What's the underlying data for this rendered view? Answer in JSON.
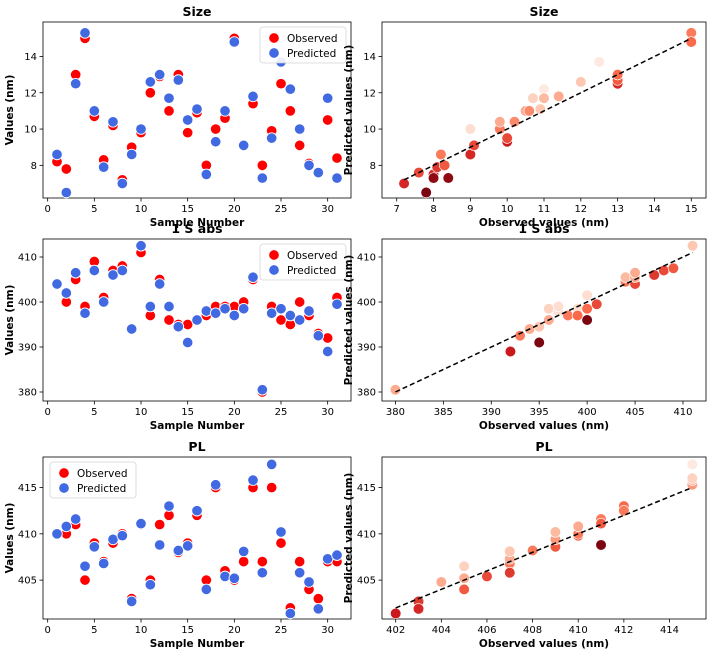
{
  "chart_data": [
    {
      "type": "scatter",
      "title": "Size",
      "xlabel": "Sample Number",
      "ylabel": "Values (nm)",
      "xlim": [
        -0.5,
        32.5
      ],
      "ylim": [
        6.2,
        15.9
      ],
      "xticks": [
        0,
        5,
        10,
        15,
        20,
        25,
        30
      ],
      "yticks": [
        8,
        10,
        12,
        14
      ],
      "legend": "top-right",
      "series": [
        {
          "name": "Observed",
          "color": "#ff0000",
          "x": [
            1,
            2,
            3,
            4,
            5,
            6,
            7,
            8,
            9,
            10,
            11,
            12,
            13,
            14,
            15,
            16,
            17,
            18,
            19,
            20,
            21,
            22,
            23,
            24,
            25,
            26,
            27,
            28,
            29,
            30,
            31
          ],
          "y": [
            8.2,
            7.8,
            13.0,
            15.0,
            10.7,
            8.3,
            10.2,
            7.2,
            9.0,
            9.8,
            12.0,
            12.9,
            11.0,
            13.0,
            9.8,
            10.9,
            8.0,
            10.0,
            10.6,
            15.0,
            9.1,
            11.4,
            8.0,
            9.9,
            12.5,
            11.0,
            9.1,
            8.1,
            7.6,
            10.5,
            8.4
          ]
        },
        {
          "name": "Predicted",
          "color": "#4169e1",
          "x": [
            1,
            2,
            3,
            4,
            5,
            6,
            7,
            8,
            9,
            10,
            11,
            12,
            13,
            14,
            15,
            16,
            17,
            18,
            19,
            20,
            21,
            22,
            23,
            24,
            25,
            26,
            27,
            28,
            29,
            30,
            31
          ],
          "y": [
            8.6,
            6.5,
            12.5,
            15.3,
            11.0,
            7.9,
            10.4,
            7.0,
            8.6,
            10.0,
            12.6,
            13.0,
            11.7,
            12.7,
            10.5,
            11.1,
            7.5,
            9.3,
            11.0,
            14.8,
            9.1,
            11.8,
            7.3,
            9.5,
            13.7,
            12.2,
            10.0,
            8.0,
            7.6,
            11.7,
            7.3
          ]
        }
      ]
    },
    {
      "type": "scatter",
      "title": "Size",
      "xlabel": "Observed values (nm)",
      "ylabel": "Predicted values (nm)",
      "xlim": [
        6.6,
        15.4
      ],
      "ylim": [
        6.2,
        15.9
      ],
      "xticks": [
        7,
        8,
        9,
        10,
        11,
        12,
        13,
        14,
        15
      ],
      "yticks": [
        8,
        10,
        12,
        14
      ],
      "colormap": "Reds",
      "reference_line": [
        [
          7.2,
          7.2
        ],
        [
          15.0,
          15.0
        ]
      ],
      "points": {
        "x": [
          7.2,
          7.6,
          7.8,
          8.0,
          8.0,
          8.1,
          8.2,
          8.3,
          8.4,
          9.0,
          9.0,
          9.1,
          9.8,
          9.8,
          10.0,
          10.0,
          10.2,
          10.5,
          10.6,
          10.7,
          10.9,
          11.0,
          11.0,
          11.4,
          12.0,
          12.5,
          13.0,
          13.0,
          13.0,
          15.0,
          15.0
        ],
        "y": [
          7.0,
          7.6,
          6.5,
          7.5,
          7.3,
          7.9,
          8.6,
          8.0,
          7.3,
          8.6,
          10.0,
          9.1,
          10.0,
          10.4,
          9.3,
          9.5,
          10.4,
          11.0,
          11.0,
          11.7,
          11.1,
          12.2,
          11.7,
          11.8,
          12.6,
          13.7,
          12.5,
          12.7,
          13.0,
          15.3,
          14.8
        ],
        "shade": [
          0.7,
          0.6,
          0.95,
          0.7,
          0.9,
          0.65,
          0.45,
          0.55,
          0.9,
          0.7,
          0.1,
          0.6,
          0.45,
          0.3,
          0.75,
          0.6,
          0.4,
          0.3,
          0.4,
          0.15,
          0.2,
          0.05,
          0.25,
          0.3,
          0.2,
          0.05,
          0.7,
          0.55,
          0.5,
          0.45,
          0.5
        ]
      }
    },
    {
      "type": "scatter",
      "title": "1 S abs",
      "xlabel": "Sample Number",
      "ylabel": "Values (nm)",
      "xlim": [
        -0.5,
        32.5
      ],
      "ylim": [
        378,
        414
      ],
      "xticks": [
        0,
        5,
        10,
        15,
        20,
        25,
        30
      ],
      "yticks": [
        380,
        390,
        400,
        410
      ],
      "legend": "top-right",
      "series": [
        {
          "name": "Observed",
          "color": "#ff0000",
          "x": [
            1,
            2,
            3,
            4,
            5,
            6,
            7,
            8,
            9,
            10,
            11,
            12,
            13,
            14,
            15,
            16,
            17,
            18,
            19,
            20,
            21,
            22,
            23,
            24,
            25,
            26,
            27,
            28,
            29,
            30,
            31
          ],
          "y": [
            404,
            400,
            405,
            399,
            409,
            401,
            407,
            408,
            394,
            411,
            397,
            405,
            396,
            395,
            395,
            396,
            397,
            399,
            399,
            399,
            400,
            405,
            380,
            399,
            396,
            395,
            400,
            397,
            393,
            392,
            401
          ]
        },
        {
          "name": "Predicted",
          "color": "#4169e1",
          "x": [
            1,
            2,
            3,
            4,
            5,
            6,
            7,
            8,
            9,
            10,
            11,
            12,
            13,
            14,
            15,
            16,
            17,
            18,
            19,
            20,
            21,
            22,
            23,
            24,
            25,
            26,
            27,
            28,
            29,
            30,
            31
          ],
          "y": [
            404,
            402,
            406.5,
            397.5,
            407,
            400,
            406,
            407,
            394,
            412.5,
            399,
            404,
            399,
            394.5,
            391,
            396,
            398,
            397.5,
            398.5,
            397,
            398.5,
            405.5,
            380.5,
            397.5,
            398.5,
            397,
            396,
            398,
            392.5,
            389,
            399.5
          ]
        }
      ]
    },
    {
      "type": "scatter",
      "title": "1 S abs",
      "xlabel": "Observed values (nm)",
      "ylabel": "Predicted values (nm)",
      "xlim": [
        378.6,
        412.4
      ],
      "ylim": [
        378,
        414
      ],
      "xticks": [
        380,
        385,
        390,
        395,
        400,
        405,
        410
      ],
      "yticks": [
        380,
        390,
        400,
        410
      ],
      "colormap": "Reds",
      "reference_line": [
        [
          380,
          380
        ],
        [
          411,
          411
        ]
      ],
      "points": {
        "x": [
          380,
          392,
          393,
          394,
          395,
          395,
          396,
          396,
          397,
          397,
          398,
          399,
          399,
          399,
          399,
          400,
          400,
          400,
          401,
          404,
          404,
          405,
          405,
          405,
          405,
          407,
          408,
          409,
          411
        ],
        "y": [
          380.5,
          389,
          392.5,
          394,
          394.5,
          391,
          396,
          398.5,
          398,
          399,
          397,
          398,
          397.5,
          398.5,
          397,
          396,
          401.5,
          398.5,
          399.5,
          404.5,
          405.5,
          404,
          406.5,
          405.5,
          406.5,
          406,
          407,
          407.5,
          412.5
        ],
        "shade": [
          0.3,
          0.75,
          0.45,
          0.3,
          0.2,
          0.95,
          0.3,
          0.15,
          0.1,
          0.1,
          0.45,
          0.45,
          0.1,
          0.1,
          0.5,
          0.95,
          0.1,
          0.5,
          0.6,
          0.45,
          0.25,
          0.6,
          0.3,
          0.3,
          0.3,
          0.65,
          0.6,
          0.55,
          0.2
        ]
      }
    },
    {
      "type": "scatter",
      "title": "PL",
      "xlabel": "Sample Number",
      "ylabel": "Values (nm)",
      "xlim": [
        -0.5,
        32.5
      ],
      "ylim": [
        400.8,
        418.3
      ],
      "xticks": [
        0,
        5,
        10,
        15,
        20,
        25,
        30
      ],
      "yticks": [
        405,
        410,
        415
      ],
      "legend": "top-left",
      "series": [
        {
          "name": "Observed",
          "color": "#ff0000",
          "x": [
            1,
            2,
            3,
            4,
            5,
            6,
            7,
            8,
            9,
            10,
            11,
            12,
            13,
            14,
            15,
            16,
            17,
            18,
            19,
            20,
            21,
            22,
            23,
            24,
            25,
            26,
            27,
            28,
            29,
            30,
            31
          ],
          "y": [
            410,
            410,
            411,
            405,
            409,
            407,
            409,
            410,
            403,
            411,
            405,
            411,
            412,
            408,
            409,
            412,
            405,
            415,
            406,
            405,
            407,
            415,
            407,
            415,
            409,
            402,
            407,
            404,
            403,
            407,
            407
          ]
        },
        {
          "name": "Predicted",
          "color": "#4169e1",
          "x": [
            1,
            2,
            3,
            4,
            5,
            6,
            7,
            8,
            9,
            10,
            11,
            12,
            13,
            14,
            15,
            16,
            17,
            18,
            19,
            20,
            21,
            22,
            23,
            24,
            25,
            26,
            27,
            28,
            29,
            30,
            31
          ],
          "y": [
            410,
            410.8,
            411.6,
            406.5,
            408.6,
            406.8,
            409.4,
            409.8,
            402.7,
            411.1,
            404.5,
            408.8,
            413,
            408.2,
            408.7,
            412.5,
            404,
            415.3,
            405.4,
            405.2,
            408.1,
            415.8,
            405.8,
            417.5,
            410.2,
            401.4,
            405.8,
            404.8,
            401.9,
            407.3,
            407.7
          ]
        }
      ]
    },
    {
      "type": "scatter",
      "title": "PL",
      "xlabel": "Observed values (nm)",
      "ylabel": "Predicted values (nm)",
      "xlim": [
        401.4,
        415.6
      ],
      "ylim": [
        400.8,
        418.3
      ],
      "xticks": [
        402,
        404,
        406,
        408,
        410,
        412,
        414
      ],
      "yticks": [
        405,
        410,
        415
      ],
      "colormap": "Reds",
      "reference_line": [
        [
          402,
          402
        ],
        [
          415,
          415
        ]
      ],
      "points": {
        "x": [
          402,
          403,
          403,
          404,
          405,
          405,
          405,
          406,
          407,
          407,
          407,
          407,
          408,
          409,
          409,
          409,
          410,
          410,
          410,
          411,
          411,
          411,
          412,
          412,
          415,
          415,
          415,
          415
        ],
        "y": [
          401.4,
          402.7,
          401.9,
          404.8,
          405.2,
          404,
          406.5,
          405.4,
          406.8,
          407.3,
          408.1,
          405.8,
          408.2,
          408.6,
          409.4,
          410.2,
          409.8,
          410,
          410.8,
          411.6,
          411.1,
          408.8,
          413,
          412.5,
          415.3,
          415.8,
          417.5,
          416
        ],
        "shade": [
          0.75,
          0.65,
          0.7,
          0.3,
          0.3,
          0.55,
          0.15,
          0.6,
          0.45,
          0.3,
          0.2,
          0.65,
          0.45,
          0.55,
          0.35,
          0.25,
          0.55,
          0.45,
          0.3,
          0.45,
          0.55,
          0.95,
          0.5,
          0.45,
          0.35,
          0.3,
          0.05,
          0.15
        ]
      }
    }
  ]
}
